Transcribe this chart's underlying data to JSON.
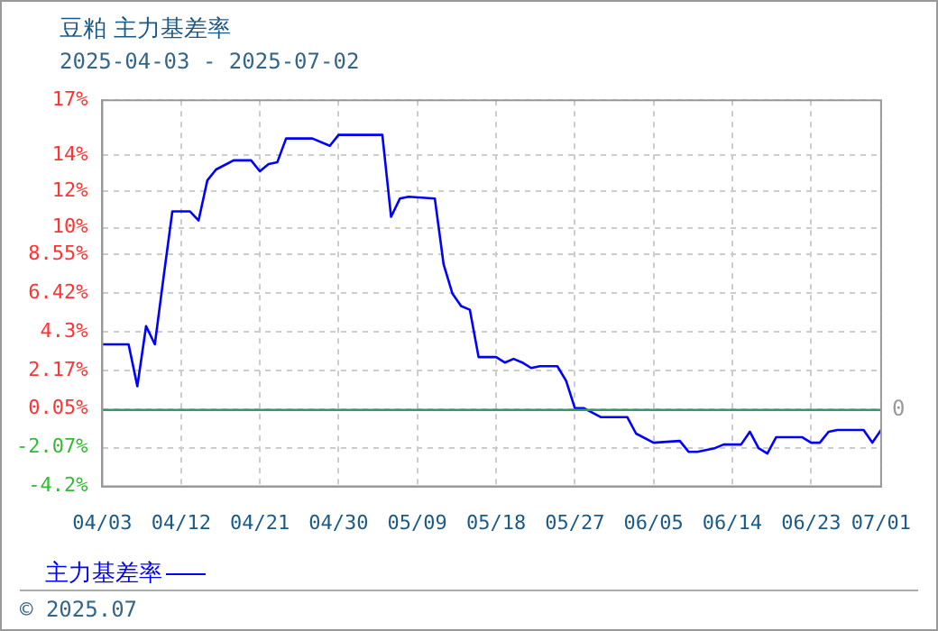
{
  "chart_data": {
    "type": "line",
    "title": "豆粕 主力基差率",
    "subtitle": "2025-04-03 - 2025-07-02",
    "x": [
      "2025-04-03",
      "2025-04-06",
      "2025-04-07",
      "2025-04-08",
      "2025-04-09",
      "2025-04-10",
      "2025-04-11",
      "2025-04-13",
      "2025-04-14",
      "2025-04-15",
      "2025-04-16",
      "2025-04-18",
      "2025-04-20",
      "2025-04-21",
      "2025-04-22",
      "2025-04-23",
      "2025-04-24",
      "2025-04-27",
      "2025-04-29",
      "2025-04-30",
      "2025-05-05",
      "2025-05-06",
      "2025-05-07",
      "2025-05-08",
      "2025-05-11",
      "2025-05-12",
      "2025-05-13",
      "2025-05-14",
      "2025-05-15",
      "2025-05-16",
      "2025-05-18",
      "2025-05-19",
      "2025-05-20",
      "2025-05-21",
      "2025-05-22",
      "2025-05-23",
      "2025-05-25",
      "2025-05-26",
      "2025-05-27",
      "2025-05-28",
      "2025-05-30",
      "2025-06-02",
      "2025-06-03",
      "2025-06-05",
      "2025-06-08",
      "2025-06-09",
      "2025-06-10",
      "2025-06-12",
      "2025-06-13",
      "2025-06-15",
      "2025-06-16",
      "2025-06-17",
      "2025-06-18",
      "2025-06-19",
      "2025-06-22",
      "2025-06-23",
      "2025-06-24",
      "2025-06-25",
      "2025-06-26",
      "2025-06-29",
      "2025-06-30",
      "2025-07-01"
    ],
    "series": [
      {
        "name": "主力基差率",
        "color": "#0000ff",
        "values": [
          3.6,
          3.6,
          1.3,
          4.6,
          3.6,
          7.3,
          10.9,
          10.9,
          10.4,
          12.6,
          13.2,
          13.7,
          13.7,
          13.1,
          13.5,
          13.6,
          14.9,
          14.9,
          14.5,
          15.1,
          15.1,
          10.6,
          11.6,
          11.7,
          11.6,
          8.0,
          6.4,
          5.7,
          5.5,
          2.9,
          2.9,
          2.6,
          2.8,
          2.6,
          2.3,
          2.4,
          2.4,
          1.6,
          0.1,
          0.1,
          -0.4,
          -0.4,
          -1.3,
          -1.8,
          -1.7,
          -2.3,
          -2.3,
          -2.1,
          -1.9,
          -1.9,
          -1.2,
          -2.1,
          -2.4,
          -1.5,
          -1.5,
          -1.8,
          -1.8,
          -1.2,
          -1.1,
          -1.1,
          -1.8,
          -1.1
        ]
      }
    ],
    "xlim": [
      "2025-04-03",
      "2025-07-01"
    ],
    "xticks": [
      {
        "value": "2025-04-03",
        "label": "04/03"
      },
      {
        "value": "2025-04-12",
        "label": "04/12"
      },
      {
        "value": "2025-04-21",
        "label": "04/21"
      },
      {
        "value": "2025-04-30",
        "label": "04/30"
      },
      {
        "value": "2025-05-09",
        "label": "05/09"
      },
      {
        "value": "2025-05-18",
        "label": "05/18"
      },
      {
        "value": "2025-05-27",
        "label": "05/27"
      },
      {
        "value": "2025-06-05",
        "label": "06/05"
      },
      {
        "value": "2025-06-14",
        "label": "06/14"
      },
      {
        "value": "2025-06-23",
        "label": "06/23"
      },
      {
        "value": "2025-07-01",
        "label": "07/01"
      }
    ],
    "ylim": [
      -4.2,
      17
    ],
    "yticks": [
      {
        "value": -4.2,
        "label": "-4.2%"
      },
      {
        "value": -2.07,
        "label": "-2.07%"
      },
      {
        "value": 0.05,
        "label": "0.05%"
      },
      {
        "value": 2.17,
        "label": "2.17%"
      },
      {
        "value": 4.3,
        "label": "4.3%"
      },
      {
        "value": 6.42,
        "label": "6.42%"
      },
      {
        "value": 8.55,
        "label": "8.55%"
      },
      {
        "value": 10,
        "label": "10%"
      },
      {
        "value": 12,
        "label": "12%"
      },
      {
        "value": 14,
        "label": "14%"
      },
      {
        "value": 17,
        "label": "17%"
      }
    ],
    "ref_lines": [
      {
        "axis": "y",
        "value": 0,
        "label": "0",
        "color": "#339966"
      }
    ],
    "grid": true,
    "legend": "bottom left",
    "marker": "none",
    "line_style": "solid",
    "annotations": [
      "© 2025.07"
    ]
  }
}
